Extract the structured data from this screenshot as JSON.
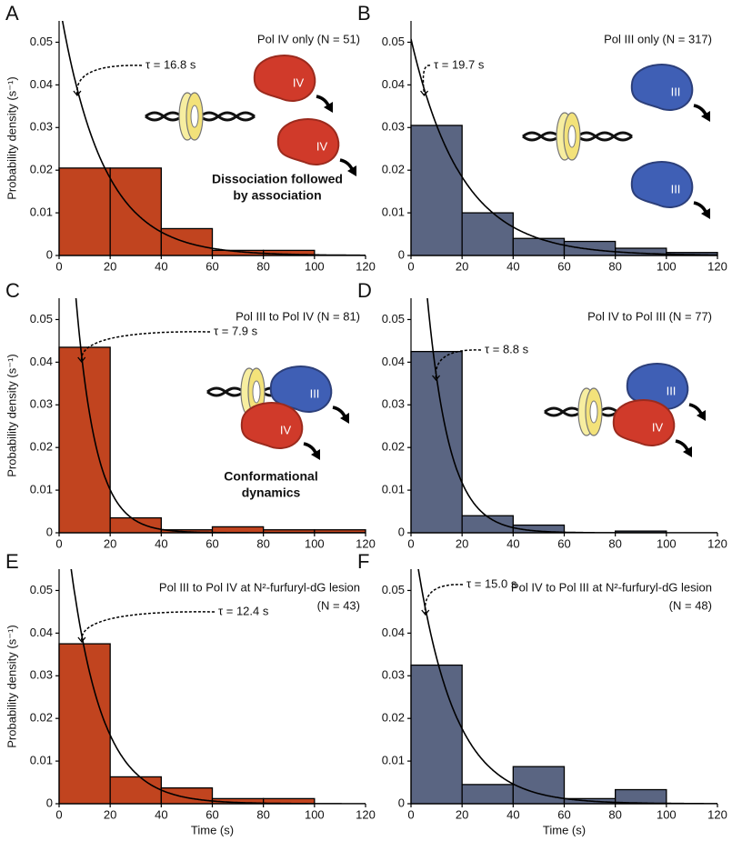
{
  "chart_data": [
    {
      "type": "histogram",
      "panel": "A",
      "title": "Pol IV only (N = 51)",
      "ylabel": "Probability density (s⁻¹)",
      "bins": [
        0,
        20,
        40,
        60,
        80,
        100,
        120
      ],
      "values": [
        0.0205,
        0.0205,
        0.0063,
        0.0012,
        0.0012,
        0
      ],
      "color": "#c1441f",
      "tau": 16.8,
      "tau_label": "τ = 16.8 s",
      "cartoon_labels": [
        "IV",
        "IV"
      ],
      "caption": [
        "Dissociation followed",
        "by association"
      ],
      "xlim": [
        0,
        120
      ],
      "ylim": [
        0,
        0.055
      ],
      "xticks": [
        0,
        20,
        40,
        60,
        80,
        100,
        120
      ],
      "yticks": [
        0,
        0.01,
        0.02,
        0.03,
        0.04,
        0.05
      ]
    },
    {
      "type": "histogram",
      "panel": "B",
      "title": "Pol III only (N = 317)",
      "bins": [
        0,
        20,
        40,
        60,
        80,
        100,
        120
      ],
      "values": [
        0.0305,
        0.01,
        0.004,
        0.0033,
        0.0017,
        0.0007
      ],
      "color": "#5a6582",
      "tau": 19.7,
      "tau_label": "τ = 19.7 s",
      "cartoon_labels": [
        "III",
        "III"
      ],
      "xlim": [
        0,
        120
      ],
      "ylim": [
        0,
        0.055
      ],
      "xticks": [
        0,
        20,
        40,
        60,
        80,
        100,
        120
      ],
      "yticks": [
        0,
        0.01,
        0.02,
        0.03,
        0.04,
        0.05
      ]
    },
    {
      "type": "histogram",
      "panel": "C",
      "title": "Pol III to Pol IV (N = 81)",
      "ylabel": "Probability density (s⁻¹)",
      "bins": [
        0,
        20,
        40,
        60,
        80,
        100,
        120
      ],
      "values": [
        0.0435,
        0.0035,
        0.0007,
        0.0014,
        0.0007,
        0.0007
      ],
      "color": "#c1441f",
      "tau": 7.9,
      "tau_label": "τ = 7.9 s",
      "cartoon_labels": [
        "III",
        "IV"
      ],
      "caption": [
        "Conformational",
        "dynamics"
      ],
      "xlim": [
        0,
        120
      ],
      "ylim": [
        0,
        0.055
      ],
      "xticks": [
        0,
        20,
        40,
        60,
        80,
        100,
        120
      ],
      "yticks": [
        0,
        0.01,
        0.02,
        0.03,
        0.04,
        0.05
      ]
    },
    {
      "type": "histogram",
      "panel": "D",
      "title": "Pol IV to Pol III (N = 77)",
      "bins": [
        0,
        20,
        40,
        60,
        80,
        100,
        120
      ],
      "values": [
        0.0425,
        0.004,
        0.0018,
        0,
        0.0004,
        0
      ],
      "color": "#5a6582",
      "tau": 8.8,
      "tau_label": "τ = 8.8 s",
      "cartoon_labels": [
        "III",
        "IV"
      ],
      "xlim": [
        0,
        120
      ],
      "ylim": [
        0,
        0.055
      ],
      "xticks": [
        0,
        20,
        40,
        60,
        80,
        100,
        120
      ],
      "yticks": [
        0,
        0.01,
        0.02,
        0.03,
        0.04,
        0.05
      ]
    },
    {
      "type": "histogram",
      "panel": "E",
      "title": "Pol III to Pol IV at N²-furfuryl-dG lesion",
      "subtitle": "(N = 43)",
      "ylabel": "Probability density (s⁻¹)",
      "xlabel": "Time (s)",
      "bins": [
        0,
        20,
        40,
        60,
        80,
        100,
        120
      ],
      "values": [
        0.0375,
        0.0063,
        0.0037,
        0.0012,
        0.0012,
        0
      ],
      "color": "#c1441f",
      "tau": 12.4,
      "tau_label": "τ = 12.4 s",
      "xlim": [
        0,
        120
      ],
      "ylim": [
        0,
        0.055
      ],
      "xticks": [
        0,
        20,
        40,
        60,
        80,
        100,
        120
      ],
      "yticks": [
        0,
        0.01,
        0.02,
        0.03,
        0.04,
        0.05
      ]
    },
    {
      "type": "histogram",
      "panel": "F",
      "title": "Pol IV to Pol III at N²-furfuryl-dG lesion",
      "subtitle": "(N = 48)",
      "xlabel": "Time (s)",
      "bins": [
        0,
        20,
        40,
        60,
        80,
        100,
        120
      ],
      "values": [
        0.0325,
        0.0045,
        0.0087,
        0.0012,
        0.0033,
        0
      ],
      "color": "#5a6582",
      "tau": 15.0,
      "tau_label": "τ = 15.0 s",
      "xlim": [
        0,
        120
      ],
      "ylim": [
        0,
        0.055
      ],
      "xticks": [
        0,
        20,
        40,
        60,
        80,
        100,
        120
      ],
      "yticks": [
        0,
        0.01,
        0.02,
        0.03,
        0.04,
        0.05
      ]
    }
  ]
}
